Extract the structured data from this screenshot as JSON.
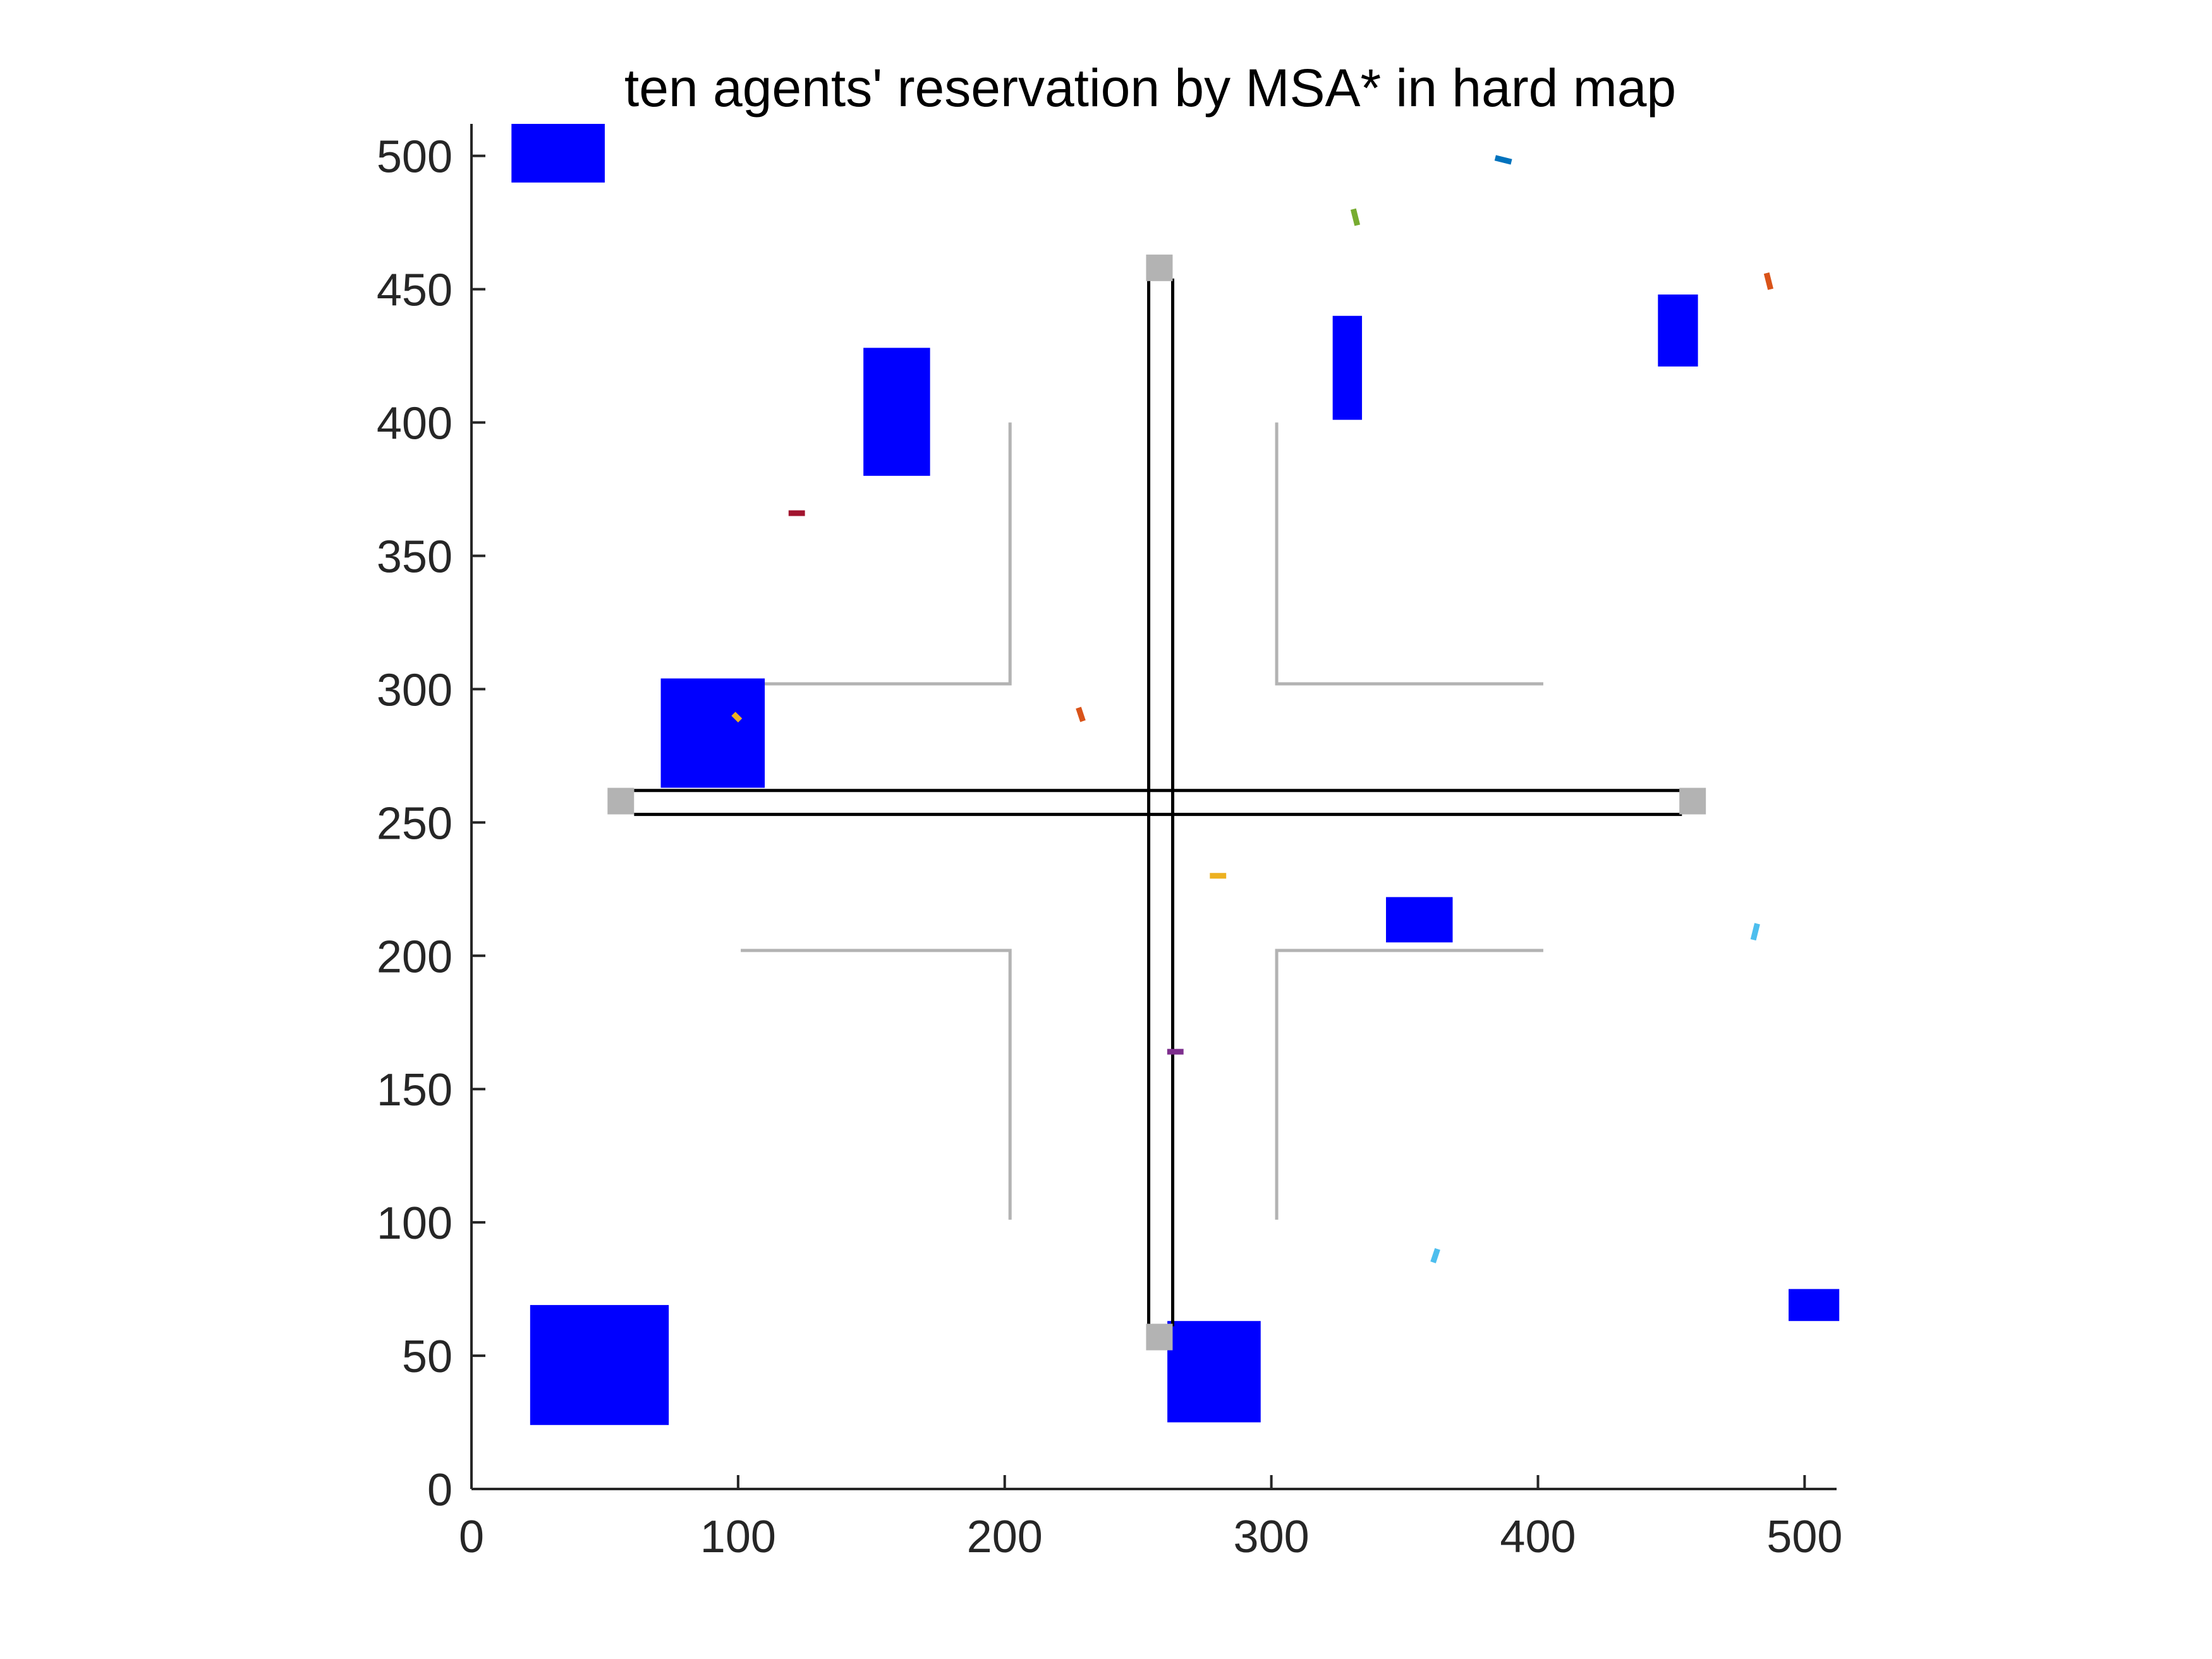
{
  "chart_data": {
    "type": "map",
    "title": "ten agents' reservation by MSA* in hard map",
    "xlabel": "",
    "ylabel": "",
    "xlim": [
      0,
      512
    ],
    "ylim": [
      0,
      512
    ],
    "xticks": [
      0,
      100,
      200,
      300,
      400,
      500
    ],
    "yticks": [
      0,
      50,
      100,
      150,
      200,
      250,
      300,
      350,
      400,
      450,
      500
    ],
    "grid": false,
    "colors": {
      "obstacle": "#0000ff",
      "road": "#000000",
      "node": "#b3b3b3",
      "boundary": "#b3b3b3"
    },
    "obstacles": [
      {
        "x": [
          15,
          50
        ],
        "y": [
          490,
          512
        ]
      },
      {
        "x": [
          147,
          172
        ],
        "y": [
          380,
          428
        ]
      },
      {
        "x": [
          71,
          110
        ],
        "y": [
          263,
          304
        ]
      },
      {
        "x": [
          323,
          334
        ],
        "y": [
          401,
          440
        ]
      },
      {
        "x": [
          445,
          460
        ],
        "y": [
          421,
          448
        ]
      },
      {
        "x": [
          343,
          368
        ],
        "y": [
          205,
          222
        ]
      },
      {
        "x": [
          22,
          74
        ],
        "y": [
          24,
          69
        ]
      },
      {
        "x": [
          261,
          296
        ],
        "y": [
          25,
          63
        ]
      },
      {
        "x": [
          494,
          513
        ],
        "y": [
          63,
          75
        ]
      }
    ],
    "roads": [
      {
        "x": [
          254,
          254
        ],
        "y": [
          61,
          454
        ]
      },
      {
        "x": [
          263,
          263
        ],
        "y": [
          61,
          454
        ]
      },
      {
        "x": [
          61,
          454
        ],
        "y": [
          262,
          262
        ]
      },
      {
        "x": [
          61,
          454
        ],
        "y": [
          253,
          253
        ]
      }
    ],
    "road_nodes": [
      {
        "x": 258,
        "y": 458
      },
      {
        "x": 258,
        "y": 57
      },
      {
        "x": 56,
        "y": 258
      },
      {
        "x": 458,
        "y": 258
      }
    ],
    "boundaries": [
      {
        "x": [
          202,
          202,
          101
        ],
        "y": [
          400,
          302,
          302
        ]
      },
      {
        "x": [
          302,
          302,
          402
        ],
        "y": [
          400,
          302,
          302
        ]
      },
      {
        "x": [
          101,
          202,
          202
        ],
        "y": [
          202,
          202,
          101
        ]
      },
      {
        "x": [
          402,
          302,
          302
        ],
        "y": [
          202,
          202,
          101
        ]
      }
    ],
    "agents": [
      {
        "color": "#0072bd",
        "x": [
          385,
          389
        ],
        "y": [
          499,
          498
        ]
      },
      {
        "color": "#77ac30",
        "x": [
          331,
          332
        ],
        "y": [
          479,
          475
        ]
      },
      {
        "color": "#d95319",
        "x": [
          486,
          487
        ],
        "y": [
          455,
          451
        ]
      },
      {
        "color": "#a2142f",
        "x": [
          120,
          124
        ],
        "y": [
          366,
          366
        ]
      },
      {
        "color": "#d95319",
        "x": [
          228,
          229
        ],
        "y": [
          292,
          289
        ]
      },
      {
        "color": "#edb120",
        "x": [
          99,
          100
        ],
        "y": [
          290,
          289
        ]
      },
      {
        "color": "#edb120",
        "x": [
          278,
          282
        ],
        "y": [
          230,
          230
        ]
      },
      {
        "color": "#4dbeee",
        "x": [
          482,
          481
        ],
        "y": [
          211,
          207
        ]
      },
      {
        "color": "#7e2f8e",
        "x": [
          262,
          266
        ],
        "y": [
          164,
          164
        ]
      },
      {
        "color": "#4dbeee",
        "x": [
          362,
          361
        ],
        "y": [
          89,
          86
        ]
      }
    ]
  }
}
